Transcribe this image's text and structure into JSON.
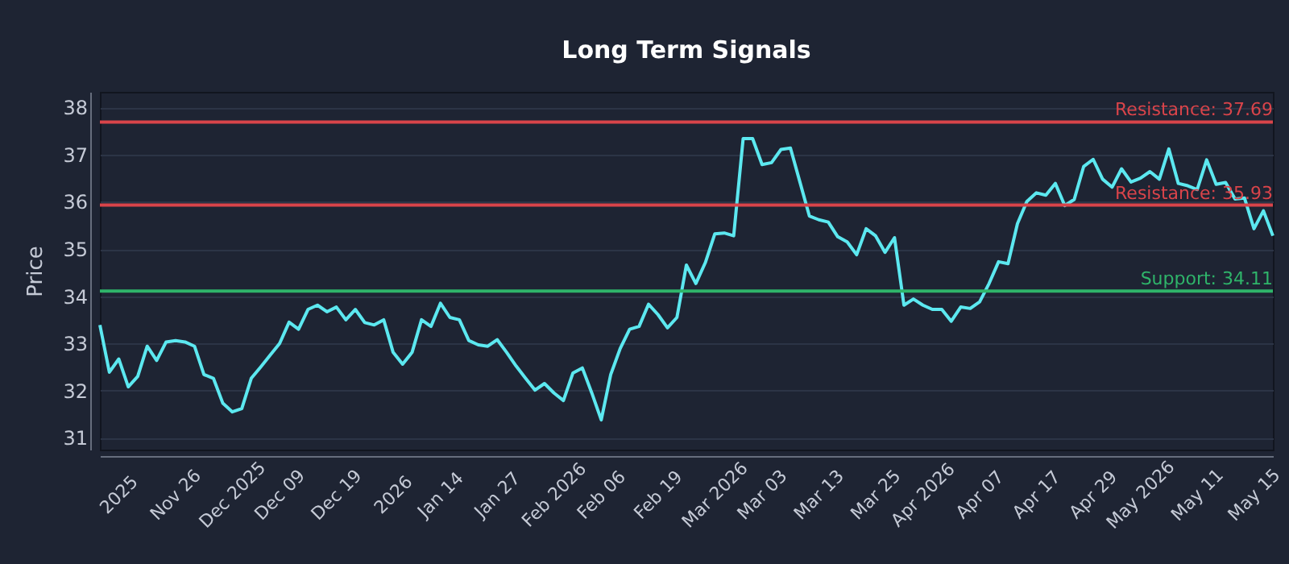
{
  "chart_data": {
    "type": "line",
    "title": "Long Term Signals",
    "ylabel": "Price",
    "categories": [
      null,
      null,
      "2025",
      null,
      null,
      null,
      null,
      null,
      "Nov 26",
      null,
      null,
      null,
      null,
      null,
      "Dec 2025",
      null,
      null,
      null,
      null,
      "Dec 09",
      null,
      null,
      null,
      null,
      null,
      "Dec 19",
      null,
      null,
      null,
      null,
      null,
      "2026",
      null,
      null,
      null,
      null,
      "Jan 14",
      null,
      null,
      null,
      null,
      null,
      "Jan 27",
      null,
      null,
      null,
      null,
      null,
      "Feb 2026",
      null,
      null,
      null,
      null,
      "Feb 06",
      null,
      null,
      null,
      null,
      null,
      "Feb 19",
      null,
      null,
      null,
      null,
      null,
      "Mar 2026",
      null,
      null,
      null,
      null,
      "Mar 03",
      null,
      null,
      null,
      null,
      null,
      "Mar 13",
      null,
      null,
      null,
      null,
      null,
      "Mar 25",
      null,
      null,
      null,
      null,
      "Apr 2026",
      null,
      null,
      null,
      null,
      null,
      "Apr 07",
      null,
      null,
      null,
      null,
      null,
      "Apr 17",
      null,
      null,
      null,
      null,
      null,
      "Apr 29",
      null,
      null,
      null,
      null,
      "May 2026",
      null,
      null,
      null,
      null,
      null,
      "May 11",
      null,
      null,
      null,
      null,
      null,
      "May 15",
      null,
      null
    ],
    "series": [
      {
        "color": "#5ce8f0",
        "values": [
          33.39,
          32.39,
          32.67,
          32.08,
          32.3,
          32.94,
          32.64,
          33.03,
          33.06,
          33.03,
          32.94,
          32.34,
          32.26,
          31.73,
          31.55,
          31.62,
          32.26,
          32.5,
          32.75,
          33.0,
          33.45,
          33.3,
          33.72,
          33.81,
          33.67,
          33.77,
          33.5,
          33.72,
          33.44,
          33.39,
          33.5,
          32.81,
          32.56,
          32.81,
          33.5,
          33.36,
          33.85,
          33.55,
          33.5,
          33.06,
          32.97,
          32.94,
          33.08,
          32.81,
          32.52,
          32.26,
          32.01,
          32.15,
          31.95,
          31.79,
          32.37,
          32.48,
          31.95,
          31.38,
          32.34,
          32.89,
          33.3,
          33.36,
          33.83,
          33.61,
          33.33,
          33.55,
          34.66,
          34.27,
          34.71,
          35.32,
          35.34,
          35.28,
          37.34,
          37.34,
          36.79,
          36.83,
          37.11,
          37.14,
          36.42,
          35.7,
          35.62,
          35.57,
          35.26,
          35.15,
          34.88,
          35.43,
          35.28,
          34.93,
          35.24,
          33.81,
          33.94,
          33.81,
          33.72,
          33.72,
          33.47,
          33.77,
          33.74,
          33.88,
          34.27,
          34.73,
          34.69,
          35.54,
          36.01,
          36.19,
          36.14,
          36.39,
          35.92,
          36.05,
          36.75,
          36.9,
          36.48,
          36.31,
          36.7,
          36.42,
          36.5,
          36.64,
          36.48,
          37.12,
          36.39,
          36.34,
          36.26,
          36.89,
          36.37,
          36.41,
          36.06,
          36.08,
          35.43,
          35.81,
          35.28
        ]
      }
    ],
    "ylim": [
      30.75,
      38.33
    ],
    "yticks": [
      31,
      32,
      33,
      34,
      35,
      36,
      37,
      38
    ],
    "grid": "y",
    "ref_lines": [
      {
        "axis": "y",
        "value": 37.69,
        "label": "Resistance: 37.69",
        "color": "#d9444a"
      },
      {
        "axis": "y",
        "value": 35.93,
        "label": "Resistance: 35.93",
        "color": "#d9444a"
      },
      {
        "axis": "y",
        "value": 34.11,
        "label": "Support: 34.11",
        "color": "#2fb46a"
      }
    ]
  }
}
